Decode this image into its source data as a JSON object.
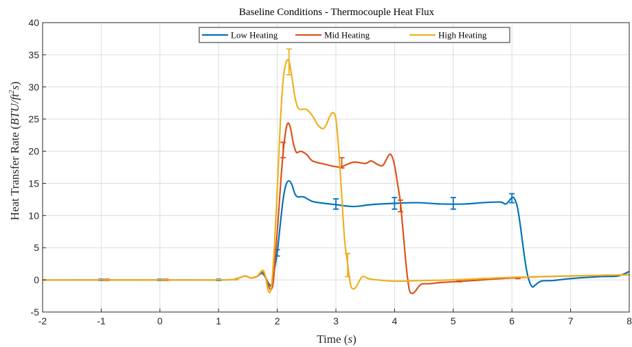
{
  "chart_data": {
    "type": "line",
    "title": "Baseline Conditions - Thermocouple Heat Flux",
    "xlabel_text": "Time (",
    "xlabel_var": "s",
    "xlabel_close": ")",
    "ylabel_text": "Heat Transfer Rate (",
    "ylabel_var": "BTU/ft",
    "ylabel_sup": "2",
    "ylabel_var2": "s",
    "ylabel_close": ")",
    "xlim": [
      -2,
      8
    ],
    "ylim": [
      -5,
      40
    ],
    "xticks": [
      -2,
      -1,
      0,
      1,
      2,
      3,
      4,
      5,
      6,
      7,
      8
    ],
    "yticks": [
      -5,
      0,
      5,
      10,
      15,
      20,
      25,
      30,
      35,
      40
    ],
    "grid": true,
    "legend_position": "top-center",
    "series": [
      {
        "name": "Low Heating",
        "color": "#0072BD",
        "points": [
          [
            -2,
            0
          ],
          [
            1.0,
            0
          ],
          [
            1.3,
            0.2
          ],
          [
            1.45,
            0.6
          ],
          [
            1.55,
            0.3
          ],
          [
            1.65,
            0.5
          ],
          [
            1.75,
            1.0
          ],
          [
            1.85,
            -0.5
          ],
          [
            1.9,
            -0.8
          ],
          [
            1.95,
            1.5
          ],
          [
            2.0,
            4.3
          ],
          [
            2.05,
            8.5
          ],
          [
            2.1,
            12.5
          ],
          [
            2.15,
            14.8
          ],
          [
            2.2,
            15.4
          ],
          [
            2.25,
            14.8
          ],
          [
            2.3,
            13.4
          ],
          [
            2.35,
            12.9
          ],
          [
            2.45,
            12.9
          ],
          [
            2.6,
            12.2
          ],
          [
            2.8,
            11.9
          ],
          [
            3.0,
            11.7
          ],
          [
            3.3,
            11.4
          ],
          [
            3.6,
            11.7
          ],
          [
            4.0,
            11.9
          ],
          [
            4.4,
            12.0
          ],
          [
            4.8,
            11.8
          ],
          [
            5.2,
            11.8
          ],
          [
            5.5,
            12.0
          ],
          [
            5.8,
            12.1
          ],
          [
            5.9,
            11.8
          ],
          [
            6.0,
            12.8
          ],
          [
            6.05,
            12.5
          ],
          [
            6.1,
            11.0
          ],
          [
            6.15,
            8.0
          ],
          [
            6.2,
            4.5
          ],
          [
            6.25,
            1.5
          ],
          [
            6.3,
            -0.3
          ],
          [
            6.35,
            -1.1
          ],
          [
            6.4,
            -0.8
          ],
          [
            6.5,
            -0.2
          ],
          [
            6.7,
            -0.1
          ],
          [
            7.0,
            0.2
          ],
          [
            7.5,
            0.5
          ],
          [
            7.8,
            0.6
          ],
          [
            8.0,
            1.3
          ]
        ],
        "error_bars": [
          [
            -1,
            0,
            0.1
          ],
          [
            0,
            0,
            0.1
          ],
          [
            1,
            0,
            0.1
          ],
          [
            2,
            4.2,
            0.5
          ],
          [
            3,
            11.8,
            0.8
          ],
          [
            4,
            11.9,
            0.9
          ],
          [
            5,
            11.9,
            0.9
          ],
          [
            6,
            12.7,
            0.7
          ]
        ]
      },
      {
        "name": "Mid Heating",
        "color": "#D95319",
        "points": [
          [
            -2,
            0
          ],
          [
            1.0,
            0
          ],
          [
            1.3,
            0.2
          ],
          [
            1.45,
            0.6
          ],
          [
            1.55,
            0.3
          ],
          [
            1.65,
            0.5
          ],
          [
            1.75,
            1.2
          ],
          [
            1.82,
            0.0
          ],
          [
            1.88,
            -1.5
          ],
          [
            1.93,
            -0.5
          ],
          [
            1.97,
            4.0
          ],
          [
            2.02,
            10.0
          ],
          [
            2.07,
            16.5
          ],
          [
            2.12,
            21.5
          ],
          [
            2.17,
            24.2
          ],
          [
            2.22,
            23.8
          ],
          [
            2.28,
            21.0
          ],
          [
            2.33,
            19.8
          ],
          [
            2.4,
            20.0
          ],
          [
            2.5,
            19.5
          ],
          [
            2.6,
            18.5
          ],
          [
            2.8,
            18.0
          ],
          [
            3.0,
            17.6
          ],
          [
            3.1,
            17.6
          ],
          [
            3.3,
            18.3
          ],
          [
            3.5,
            18.1
          ],
          [
            3.6,
            18.5
          ],
          [
            3.7,
            18.0
          ],
          [
            3.8,
            17.8
          ],
          [
            3.9,
            19.4
          ],
          [
            3.95,
            19.3
          ],
          [
            4.0,
            17.8
          ],
          [
            4.05,
            15.0
          ],
          [
            4.1,
            12.0
          ],
          [
            4.15,
            7.0
          ],
          [
            4.2,
            2.0
          ],
          [
            4.25,
            -1.5
          ],
          [
            4.3,
            -2.1
          ],
          [
            4.35,
            -1.8
          ],
          [
            4.45,
            -0.7
          ],
          [
            4.6,
            -0.6
          ],
          [
            4.8,
            -0.4
          ],
          [
            5.0,
            -0.3
          ],
          [
            5.5,
            0.0
          ],
          [
            6.0,
            0.3
          ],
          [
            6.5,
            0.5
          ],
          [
            7.0,
            0.6
          ],
          [
            8.0,
            0.8
          ]
        ],
        "error_bars": [
          [
            -0.9,
            0,
            0.1
          ],
          [
            0.1,
            0,
            0.1
          ],
          [
            2.1,
            20.2,
            1.2
          ],
          [
            3.1,
            18.2,
            0.8
          ],
          [
            4.1,
            11.5,
            0.9
          ],
          [
            5.1,
            -0.2,
            0.1
          ],
          [
            6.1,
            0.3,
            0.1
          ]
        ]
      },
      {
        "name": "High Heating",
        "color": "#EDB120",
        "points": [
          [
            -2,
            0
          ],
          [
            1.0,
            0
          ],
          [
            1.3,
            0.2
          ],
          [
            1.45,
            0.6
          ],
          [
            1.55,
            0.3
          ],
          [
            1.65,
            0.5
          ],
          [
            1.75,
            1.5
          ],
          [
            1.8,
            0.5
          ],
          [
            1.85,
            -1.8
          ],
          [
            1.9,
            -1.0
          ],
          [
            1.95,
            5.0
          ],
          [
            2.0,
            14.0
          ],
          [
            2.05,
            24.0
          ],
          [
            2.1,
            31.0
          ],
          [
            2.15,
            33.8
          ],
          [
            2.2,
            34.0
          ],
          [
            2.25,
            31.5
          ],
          [
            2.3,
            28.5
          ],
          [
            2.35,
            26.8
          ],
          [
            2.4,
            26.5
          ],
          [
            2.5,
            26.5
          ],
          [
            2.6,
            25.5
          ],
          [
            2.7,
            24.0
          ],
          [
            2.8,
            23.6
          ],
          [
            2.9,
            25.5
          ],
          [
            2.95,
            26.0
          ],
          [
            3.0,
            25.0
          ],
          [
            3.05,
            20.0
          ],
          [
            3.1,
            13.0
          ],
          [
            3.15,
            6.0
          ],
          [
            3.2,
            2.5
          ],
          [
            3.25,
            -0.8
          ],
          [
            3.3,
            -1.4
          ],
          [
            3.35,
            -1.0
          ],
          [
            3.45,
            0.5
          ],
          [
            3.55,
            0.2
          ],
          [
            3.7,
            0.0
          ],
          [
            4.0,
            -0.2
          ],
          [
            4.5,
            -0.1
          ],
          [
            5.0,
            0.0
          ],
          [
            5.5,
            0.2
          ],
          [
            6.0,
            0.4
          ],
          [
            6.5,
            0.5
          ],
          [
            7.0,
            0.6
          ],
          [
            8.0,
            0.8
          ]
        ],
        "error_bars": [
          [
            2.2,
            33.9,
            2.0
          ],
          [
            3.2,
            2.3,
            1.8
          ]
        ]
      }
    ]
  }
}
